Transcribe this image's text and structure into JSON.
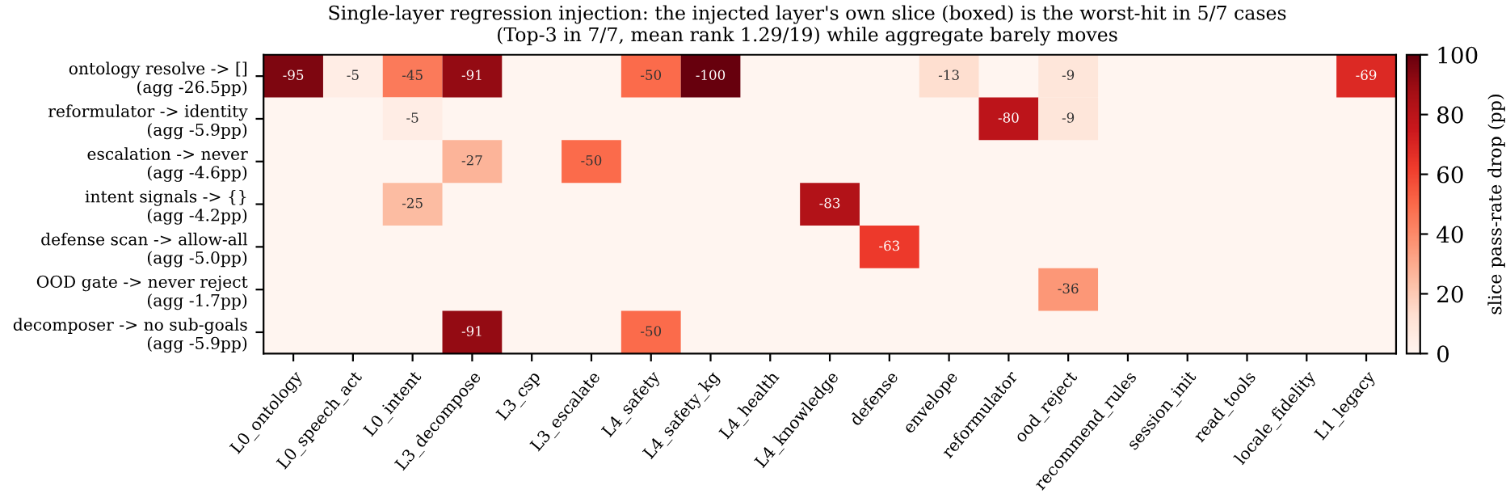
{
  "chart_data": {
    "type": "heatmap",
    "title": "Single-layer regression injection: the injected layer's own slice (boxed) is the worst-hit in 5/7 cases\n(Top-3 in 7/7, mean rank 1.29/19) while aggregate barely moves",
    "categories": [
      "L0_ontology",
      "L0_speech_act",
      "L0_intent",
      "L3_decompose",
      "L3_csp",
      "L3_escalate",
      "L4_safety",
      "L4_safety_kg",
      "L4_health",
      "L4_knowledge",
      "defense",
      "envelope",
      "reformulator",
      "ood_reject",
      "recommend_rules",
      "session_init",
      "read_tools",
      "locale_fidelity",
      "L1_legacy"
    ],
    "y_categories": [
      "ontology resolve -> []\n(agg -26.5pp)",
      "reformulator -> identity\n(agg -5.9pp)",
      "escalation -> never\n(agg -4.6pp)",
      "intent signals -> {}\n(agg -4.2pp)",
      "defense scan -> allow-all\n(agg -5.0pp)",
      "OOD gate -> never reject\n(agg -1.7pp)",
      "decomposer -> no sub-goals\n(agg -5.9pp)"
    ],
    "cells": [
      [
        -95,
        -5,
        -45,
        -91,
        null,
        null,
        -50,
        -100,
        null,
        null,
        null,
        -13,
        null,
        -9,
        null,
        null,
        null,
        null,
        -69
      ],
      [
        null,
        null,
        -5,
        null,
        null,
        null,
        null,
        null,
        null,
        null,
        null,
        null,
        -80,
        -9,
        null,
        null,
        null,
        null,
        null
      ],
      [
        null,
        null,
        null,
        -27,
        null,
        -50,
        null,
        null,
        null,
        null,
        null,
        null,
        null,
        null,
        null,
        null,
        null,
        null,
        null
      ],
      [
        null,
        null,
        -25,
        null,
        null,
        null,
        null,
        null,
        null,
        -83,
        null,
        null,
        null,
        null,
        null,
        null,
        null,
        null,
        null
      ],
      [
        null,
        null,
        null,
        null,
        null,
        null,
        null,
        null,
        null,
        null,
        -63,
        null,
        null,
        null,
        null,
        null,
        null,
        null,
        null
      ],
      [
        null,
        null,
        null,
        null,
        null,
        null,
        null,
        null,
        null,
        null,
        null,
        null,
        null,
        -36,
        null,
        null,
        null,
        null,
        null
      ],
      [
        null,
        null,
        null,
        -91,
        null,
        null,
        -50,
        null,
        null,
        null,
        null,
        null,
        null,
        null,
        null,
        null,
        null,
        null,
        null
      ]
    ],
    "clabel": "slice pass-rate drop (pp)",
    "clim": [
      0,
      -100
    ],
    "cticks": [
      {
        "value": 0,
        "label": "0"
      },
      {
        "value": -20,
        "label": "20"
      },
      {
        "value": -40,
        "label": "40"
      },
      {
        "value": -60,
        "label": "60"
      },
      {
        "value": -80,
        "label": "80"
      },
      {
        "value": -100,
        "label": "100"
      }
    ],
    "data_labels": true
  }
}
